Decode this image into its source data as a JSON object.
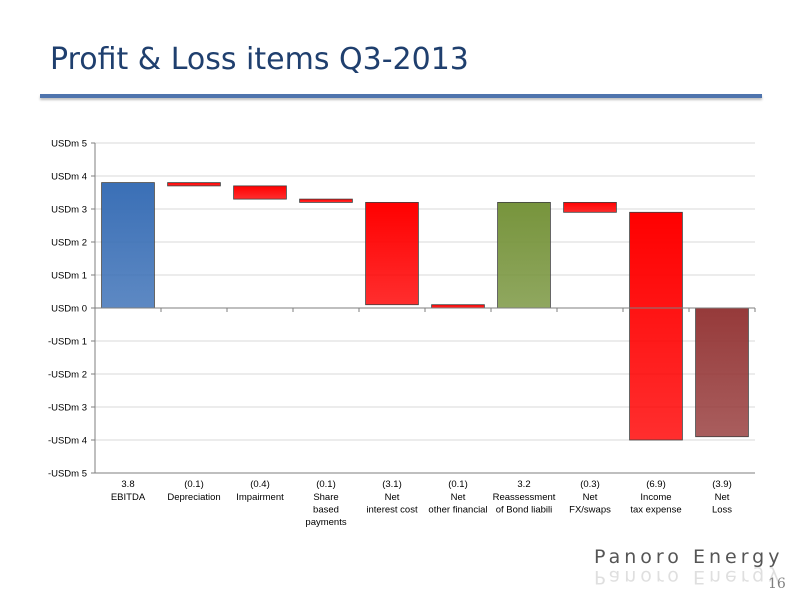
{
  "slide": {
    "title": "Profit & Loss items Q3-2013",
    "brand": "Panoro Energy",
    "page_number": "16"
  },
  "chart_data": {
    "type": "bar",
    "subtype": "waterfall",
    "title": "",
    "xlabel": "",
    "ylabel": "",
    "ylim": [
      -5,
      5
    ],
    "ytick_values": [
      5,
      4,
      3,
      2,
      1,
      0,
      -1,
      -2,
      -3,
      -4,
      -5
    ],
    "ytick_labels": [
      "USDm 5",
      "USDm 4",
      "USDm 3",
      "USDm 2",
      "USDm 1",
      "USDm 0",
      "-USDm 1",
      "-USDm 2",
      "-USDm 3",
      "-USDm 4",
      "-USDm 5"
    ],
    "grid": true,
    "legend": "none",
    "bars": [
      {
        "value_label": "3.8",
        "label_lines": [
          "EBITDA"
        ],
        "start": 0,
        "end": 3.8,
        "color": "#3a6fb6"
      },
      {
        "value_label": "(0.1)",
        "label_lines": [
          "Depreciation"
        ],
        "start": 3.8,
        "end": 3.7,
        "color": "#ff0000"
      },
      {
        "value_label": "(0.4)",
        "label_lines": [
          "Impairment"
        ],
        "start": 3.7,
        "end": 3.3,
        "color": "#ff0000"
      },
      {
        "value_label": "(0.1)",
        "label_lines": [
          "Share",
          "based",
          "payments"
        ],
        "start": 3.3,
        "end": 3.2,
        "color": "#ff0000"
      },
      {
        "value_label": "(3.1)",
        "label_lines": [
          "Net",
          "interest cost"
        ],
        "start": 3.2,
        "end": 0.1,
        "color": "#ff0000"
      },
      {
        "value_label": "(0.1)",
        "label_lines": [
          "Net",
          "other financial"
        ],
        "start": 0.1,
        "end": 0.0,
        "color": "#ff0000"
      },
      {
        "value_label": "3.2",
        "label_lines": [
          "Reassessment",
          "of Bond liabili"
        ],
        "start": 0.0,
        "end": 3.2,
        "color": "#77943c"
      },
      {
        "value_label": "(0.3)",
        "label_lines": [
          "Net",
          "FX/swaps"
        ],
        "start": 3.2,
        "end": 2.9,
        "color": "#ff0000"
      },
      {
        "value_label": "(6.9)",
        "label_lines": [
          "Income",
          "tax expense"
        ],
        "start": 2.9,
        "end": -4.0,
        "color": "#ff0000"
      },
      {
        "value_label": "(3.9)",
        "label_lines": [
          "Net",
          "Loss"
        ],
        "start": 0,
        "end": -3.9,
        "color": "#963a3a"
      }
    ]
  }
}
